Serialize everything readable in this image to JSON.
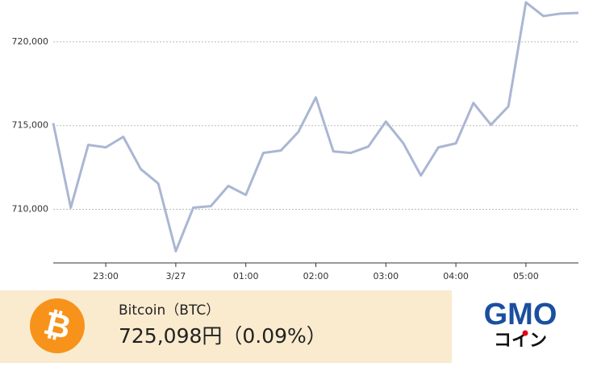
{
  "chart_data": {
    "type": "line",
    "categories": [
      null,
      null,
      null,
      "23:00",
      null,
      null,
      null,
      "3/27",
      null,
      null,
      null,
      "01:00",
      null,
      null,
      null,
      "02:00",
      null,
      null,
      null,
      "03:00",
      null,
      null,
      null,
      "04:00",
      null,
      null,
      null,
      "05:00",
      null,
      null,
      null
    ],
    "series": [
      {
        "color": "#aab6d3",
        "values": [
          715150,
          710100,
          713850,
          713700,
          714330,
          712400,
          711540,
          707500,
          710100,
          710190,
          711400,
          710860,
          713370,
          713510,
          714620,
          716680,
          713460,
          713370,
          713750,
          715240,
          713940,
          712020,
          713700,
          713940,
          716350,
          715050,
          716150,
          722360,
          721540,
          721690,
          721730
        ]
      }
    ],
    "ylim": [
      706800,
      722500
    ],
    "yticks": [
      {
        "value": 710000,
        "label": "710,000"
      },
      {
        "value": 715000,
        "label": "715,000"
      },
      {
        "value": 720000,
        "label": "720,000"
      }
    ],
    "grid": true
  },
  "ticker": {
    "icon": "₿",
    "name": "Bitcoin（BTC）",
    "price": "725,098円（0.09%）"
  },
  "logo": {
    "brand": "GMO",
    "product": "コイン"
  }
}
